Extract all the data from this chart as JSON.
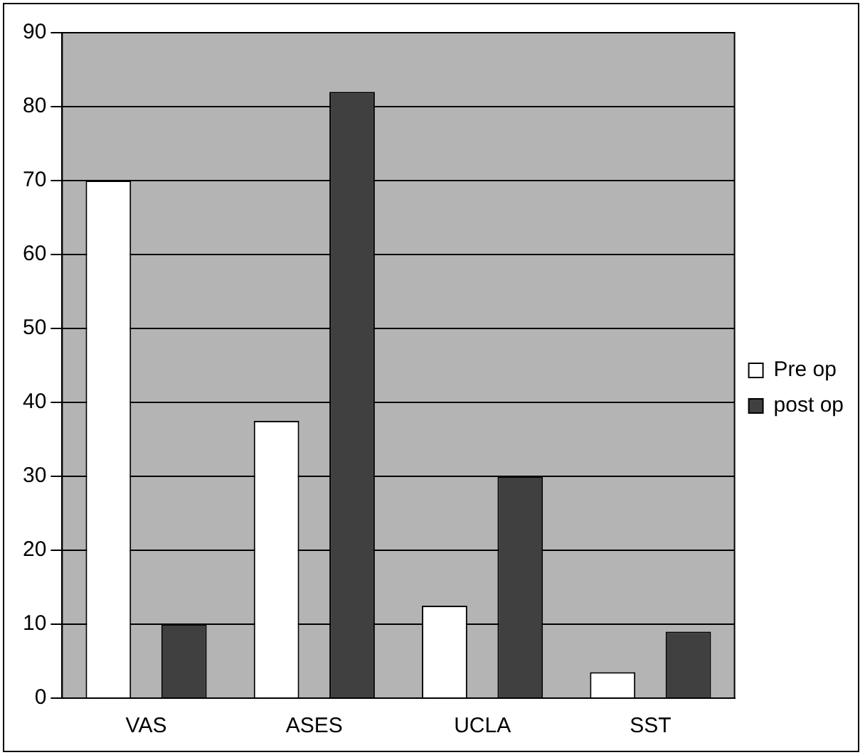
{
  "chart_data": {
    "type": "bar",
    "categories": [
      "VAS",
      "ASES",
      "UCLA",
      "SST"
    ],
    "series": [
      {
        "name": "Pre op",
        "color": "#ffffff",
        "values": [
          70,
          37.5,
          12.5,
          3.5
        ]
      },
      {
        "name": "post op",
        "color": "#404040",
        "values": [
          10,
          82,
          30,
          9
        ]
      }
    ],
    "ylim": [
      0,
      90
    ],
    "yticks": [
      0,
      10,
      20,
      30,
      40,
      50,
      60,
      70,
      80,
      90
    ],
    "grid": "y",
    "legend": "right"
  }
}
